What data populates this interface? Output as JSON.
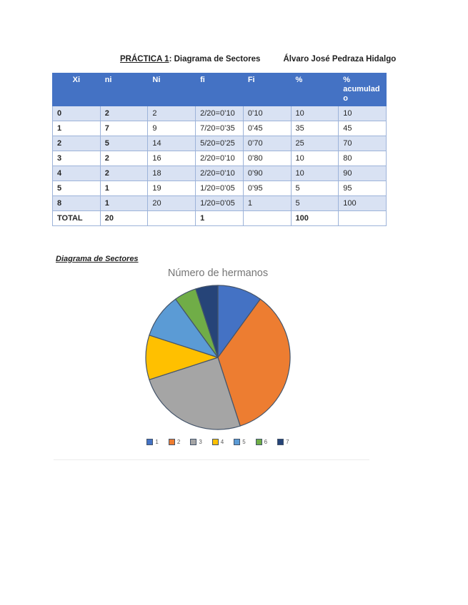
{
  "header": {
    "practice": "PRÁCTICA 1",
    "title_rest": ": Diagrama de Sectores",
    "author": "Álvaro José Pedraza Hidalgo"
  },
  "table": {
    "headers": [
      "Xi",
      "ni",
      "Ni",
      "fi",
      "Fi",
      "%",
      "% acumulado"
    ],
    "rows": [
      [
        "0",
        "2",
        "2",
        "2/20=0’10",
        "0’10",
        "10",
        "10"
      ],
      [
        "1",
        "7",
        "9",
        "7/20=0’35",
        "0’45",
        "35",
        "45"
      ],
      [
        "2",
        "5",
        "14",
        "5/20=0’25",
        "0’70",
        "25",
        "70"
      ],
      [
        "3",
        "2",
        "16",
        "2/20=0’10",
        "0’80",
        "10",
        "80"
      ],
      [
        "4",
        "2",
        "18",
        "2/20=0’10",
        "0’90",
        "10",
        "90"
      ],
      [
        "5",
        "1",
        "19",
        "1/20=0’05",
        "0’95",
        "5",
        "95"
      ],
      [
        "8",
        "1",
        "20",
        "1/20=0’05",
        "1",
        "5",
        "100"
      ],
      [
        "TOTAL",
        "20",
        "",
        "1",
        "",
        "100",
        ""
      ]
    ]
  },
  "section": {
    "label": "Diagrama de Sectores"
  },
  "chart_data": {
    "type": "pie",
    "title": "Número de hermanos",
    "categories": [
      "1",
      "2",
      "3",
      "4",
      "5",
      "6",
      "7"
    ],
    "values": [
      10,
      35,
      25,
      10,
      10,
      5,
      5
    ],
    "unit": "percent",
    "colors": [
      "#4472C4",
      "#ED7D31",
      "#A5A5A5",
      "#FFC000",
      "#5B9BD5",
      "#70AD47",
      "#264478"
    ],
    "start_angle_deg": 0,
    "direction": "clockwise",
    "legend_position": "bottom"
  },
  "colors": {
    "table_header_bg": "#4472C4",
    "table_band_bg": "#D9E2F3",
    "table_border": "#9DB3D9",
    "slice_border": "#44546A",
    "chart_title_text": "#757575",
    "legend_text": "#595959"
  }
}
